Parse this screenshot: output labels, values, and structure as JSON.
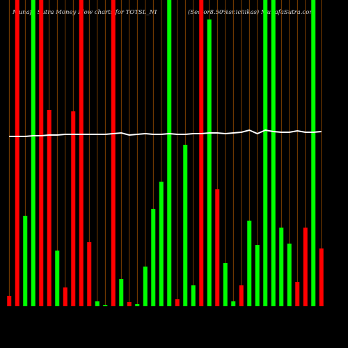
{
  "chart_data": {
    "type": "bar",
    "title": "Munafa Sutra  Money Flow charts for TOTSL_NI",
    "subtitle": "(Sector8.50%sr.iciiikas) MunafaSutra.com",
    "categories": [
      null,
      null,
      null,
      null,
      null,
      null,
      null,
      null,
      null,
      null,
      null,
      null,
      null,
      null,
      null,
      null,
      null,
      null,
      null,
      null,
      null,
      null,
      null,
      null,
      null,
      null,
      null,
      null,
      null,
      null,
      null,
      null,
      null,
      null,
      null,
      null,
      null,
      null,
      null,
      null
    ],
    "values": [
      15,
      440,
      130,
      440,
      440,
      282,
      80,
      27,
      280,
      440,
      92,
      7,
      2,
      440,
      39,
      6,
      3,
      57,
      140,
      179,
      440,
      10,
      232,
      30,
      440,
      412,
      168,
      62,
      7,
      30,
      123,
      88,
      440,
      440,
      113,
      90,
      35,
      113,
      440,
      83
    ],
    "colors": [
      "#ff0000",
      "#ff0000",
      "#00ff00",
      "#00ff00",
      "#ff0000",
      "#ff0000",
      "#00ff00",
      "#ff0000",
      "#ff0000",
      "#ff0000",
      "#ff0000",
      "#00ff00",
      "#00ff00",
      "#ff0000",
      "#00ff00",
      "#ff0000",
      "#00ff00",
      "#00ff00",
      "#00ff00",
      "#00ff00",
      "#00ff00",
      "#ff0000",
      "#00ff00",
      "#00ff00",
      "#ff0000",
      "#00ff00",
      "#ff0000",
      "#00ff00",
      "#00ff00",
      "#ff0000",
      "#00ff00",
      "#00ff00",
      "#00ff00",
      "#00ff00",
      "#00ff00",
      "#00ff00",
      "#ff0000",
      "#ff0000",
      "#00ff00",
      "#ff0000"
    ],
    "line": {
      "color": "#ffffff",
      "values": [
        244,
        244,
        244,
        245,
        245,
        246,
        246,
        247,
        247,
        247,
        247,
        247,
        247,
        248,
        249,
        246,
        247,
        248,
        247,
        247,
        248,
        247,
        247,
        248,
        248,
        249,
        249,
        248,
        249,
        250,
        253,
        248,
        253,
        251,
        250,
        250,
        252,
        250,
        250,
        251
      ]
    },
    "ylim": [
      0,
      440
    ],
    "grid_color": "#b35900"
  }
}
